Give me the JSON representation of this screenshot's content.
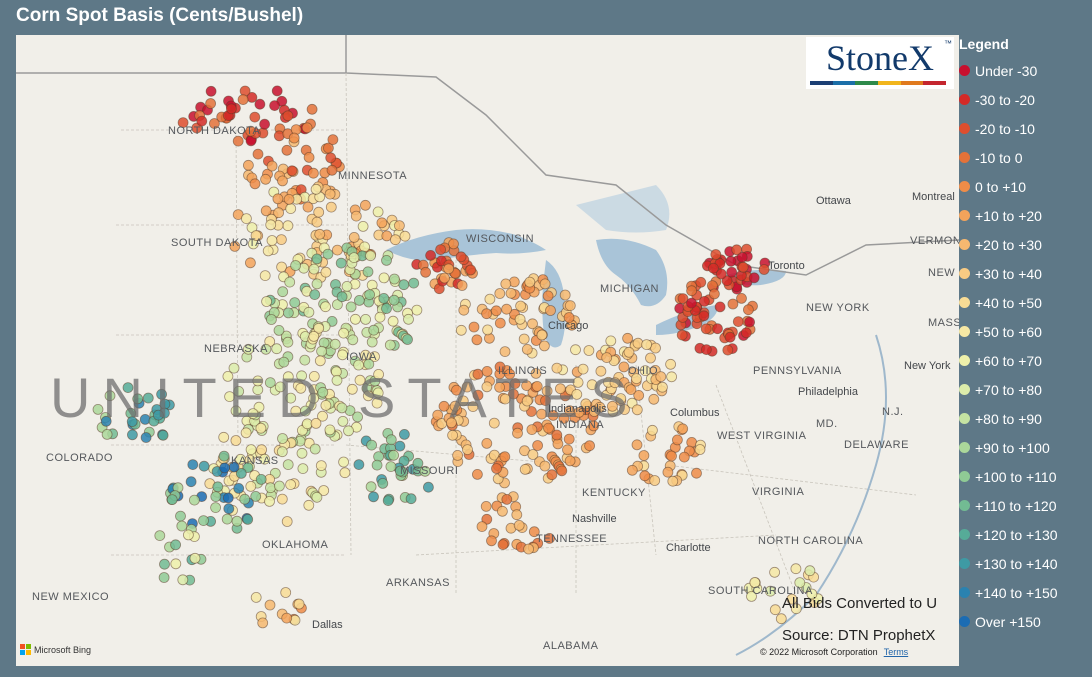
{
  "title": "Corn Spot Basis (Cents/Bushel)",
  "logo": {
    "text": "StoneX",
    "tm": "™",
    "bar_colors": [
      "#1c3f74",
      "#1c6fa8",
      "#2e8a4a",
      "#f1b51c",
      "#e07a1e",
      "#c4262e"
    ]
  },
  "legend": {
    "title": "Legend",
    "items": [
      {
        "label": "Under -30",
        "color": "#c8102e"
      },
      {
        "label": "-30 to -20",
        "color": "#d42a27"
      },
      {
        "label": "-20 to -10",
        "color": "#de4e2e"
      },
      {
        "label": "-10 to 0",
        "color": "#e47239"
      },
      {
        "label": "0 to +10",
        "color": "#ee8c48"
      },
      {
        "label": "+10 to +20",
        "color": "#f3a35b"
      },
      {
        "label": "+20 to +30",
        "color": "#f6b870"
      },
      {
        "label": "+30 to +40",
        "color": "#f8cb83"
      },
      {
        "label": "+40 to +50",
        "color": "#f8dc95"
      },
      {
        "label": "+50 to +60",
        "color": "#f6e8a4"
      },
      {
        "label": "+60 to +70",
        "color": "#eef0aa"
      },
      {
        "label": "+70 to +80",
        "color": "#dcecaa"
      },
      {
        "label": "+80 to +90",
        "color": "#c5e3a2"
      },
      {
        "label": "+90 to +100",
        "color": "#abd79a"
      },
      {
        "label": "+100 to +110",
        "color": "#8fca95"
      },
      {
        "label": "+110 to +120",
        "color": "#72bb93"
      },
      {
        "label": "+120 to +130",
        "color": "#56ab98"
      },
      {
        "label": "+130 to +140",
        "color": "#3e9aa4"
      },
      {
        "label": "+140 to +150",
        "color": "#2a82b0"
      },
      {
        "label": "Over +150",
        "color": "#1b6cb3"
      }
    ]
  },
  "map": {
    "big_label": "UNITED STATES",
    "state_labels": [
      {
        "text": "NORTH DAKOTA",
        "name": "north-dakota"
      },
      {
        "text": "MINNESOTA",
        "name": "minnesota"
      },
      {
        "text": "SOUTH DAKOTA",
        "name": "south-dakota"
      },
      {
        "text": "WISCONSIN",
        "name": "wisconsin"
      },
      {
        "text": "MICHIGAN",
        "name": "michigan"
      },
      {
        "text": "NEBRASKA",
        "name": "nebraska"
      },
      {
        "text": "IOWA",
        "name": "iowa"
      },
      {
        "text": "COLORADO",
        "name": "colorado"
      },
      {
        "text": "KANSAS",
        "name": "kansas"
      },
      {
        "text": "MISSOURI",
        "name": "missouri"
      },
      {
        "text": "ILLINOIS",
        "name": "illinois"
      },
      {
        "text": "INDIANA",
        "name": "indiana"
      },
      {
        "text": "OHIO",
        "name": "ohio"
      },
      {
        "text": "PENNSYLVANIA",
        "name": "pennsylvania"
      },
      {
        "text": "NEW YORK",
        "name": "new-york"
      },
      {
        "text": "VERMONT",
        "name": "vermont"
      },
      {
        "text": "NEW HAMPSHIRE",
        "name": "new-hampshire"
      },
      {
        "text": "MASS.",
        "name": "massachusetts"
      },
      {
        "text": "N.J.",
        "name": "new-jersey"
      },
      {
        "text": "MD.",
        "name": "maryland"
      },
      {
        "text": "DELAWARE",
        "name": "delaware"
      },
      {
        "text": "WEST VIRGINIA",
        "name": "west-virginia"
      },
      {
        "text": "VIRGINIA",
        "name": "virginia"
      },
      {
        "text": "KENTUCKY",
        "name": "kentucky"
      },
      {
        "text": "TENNESSEE",
        "name": "tennessee"
      },
      {
        "text": "NORTH CAROLINA",
        "name": "north-carolina"
      },
      {
        "text": "SOUTH CAROLINA",
        "name": "south-carolina"
      },
      {
        "text": "OKLAHOMA",
        "name": "oklahoma"
      },
      {
        "text": "ARKANSAS",
        "name": "arkansas"
      },
      {
        "text": "NEW MEXICO",
        "name": "new-mexico"
      },
      {
        "text": "ALABAMA",
        "name": "alabama"
      }
    ],
    "city_labels": [
      {
        "text": "Ottawa",
        "name": "ottawa"
      },
      {
        "text": "Montreal",
        "name": "montreal"
      },
      {
        "text": "Toronto",
        "name": "toronto"
      },
      {
        "text": "Chicago",
        "name": "chicago"
      },
      {
        "text": "Indianapolis",
        "name": "indianapolis"
      },
      {
        "text": "Columbus",
        "name": "columbus"
      },
      {
        "text": "Philadelphia",
        "name": "philadelphia"
      },
      {
        "text": "New York",
        "name": "new-york-city"
      },
      {
        "text": "Nashville",
        "name": "nashville"
      },
      {
        "text": "Charlotte",
        "name": "charlotte"
      },
      {
        "text": "Dallas",
        "name": "dallas"
      }
    ]
  },
  "notes": {
    "converted": "All Bids Converted to U",
    "source": "Source: DTN ProphetX",
    "copyright": "© 2022 Microsoft Corporation",
    "terms": "Terms",
    "bing": "Microsoft Bing"
  }
}
